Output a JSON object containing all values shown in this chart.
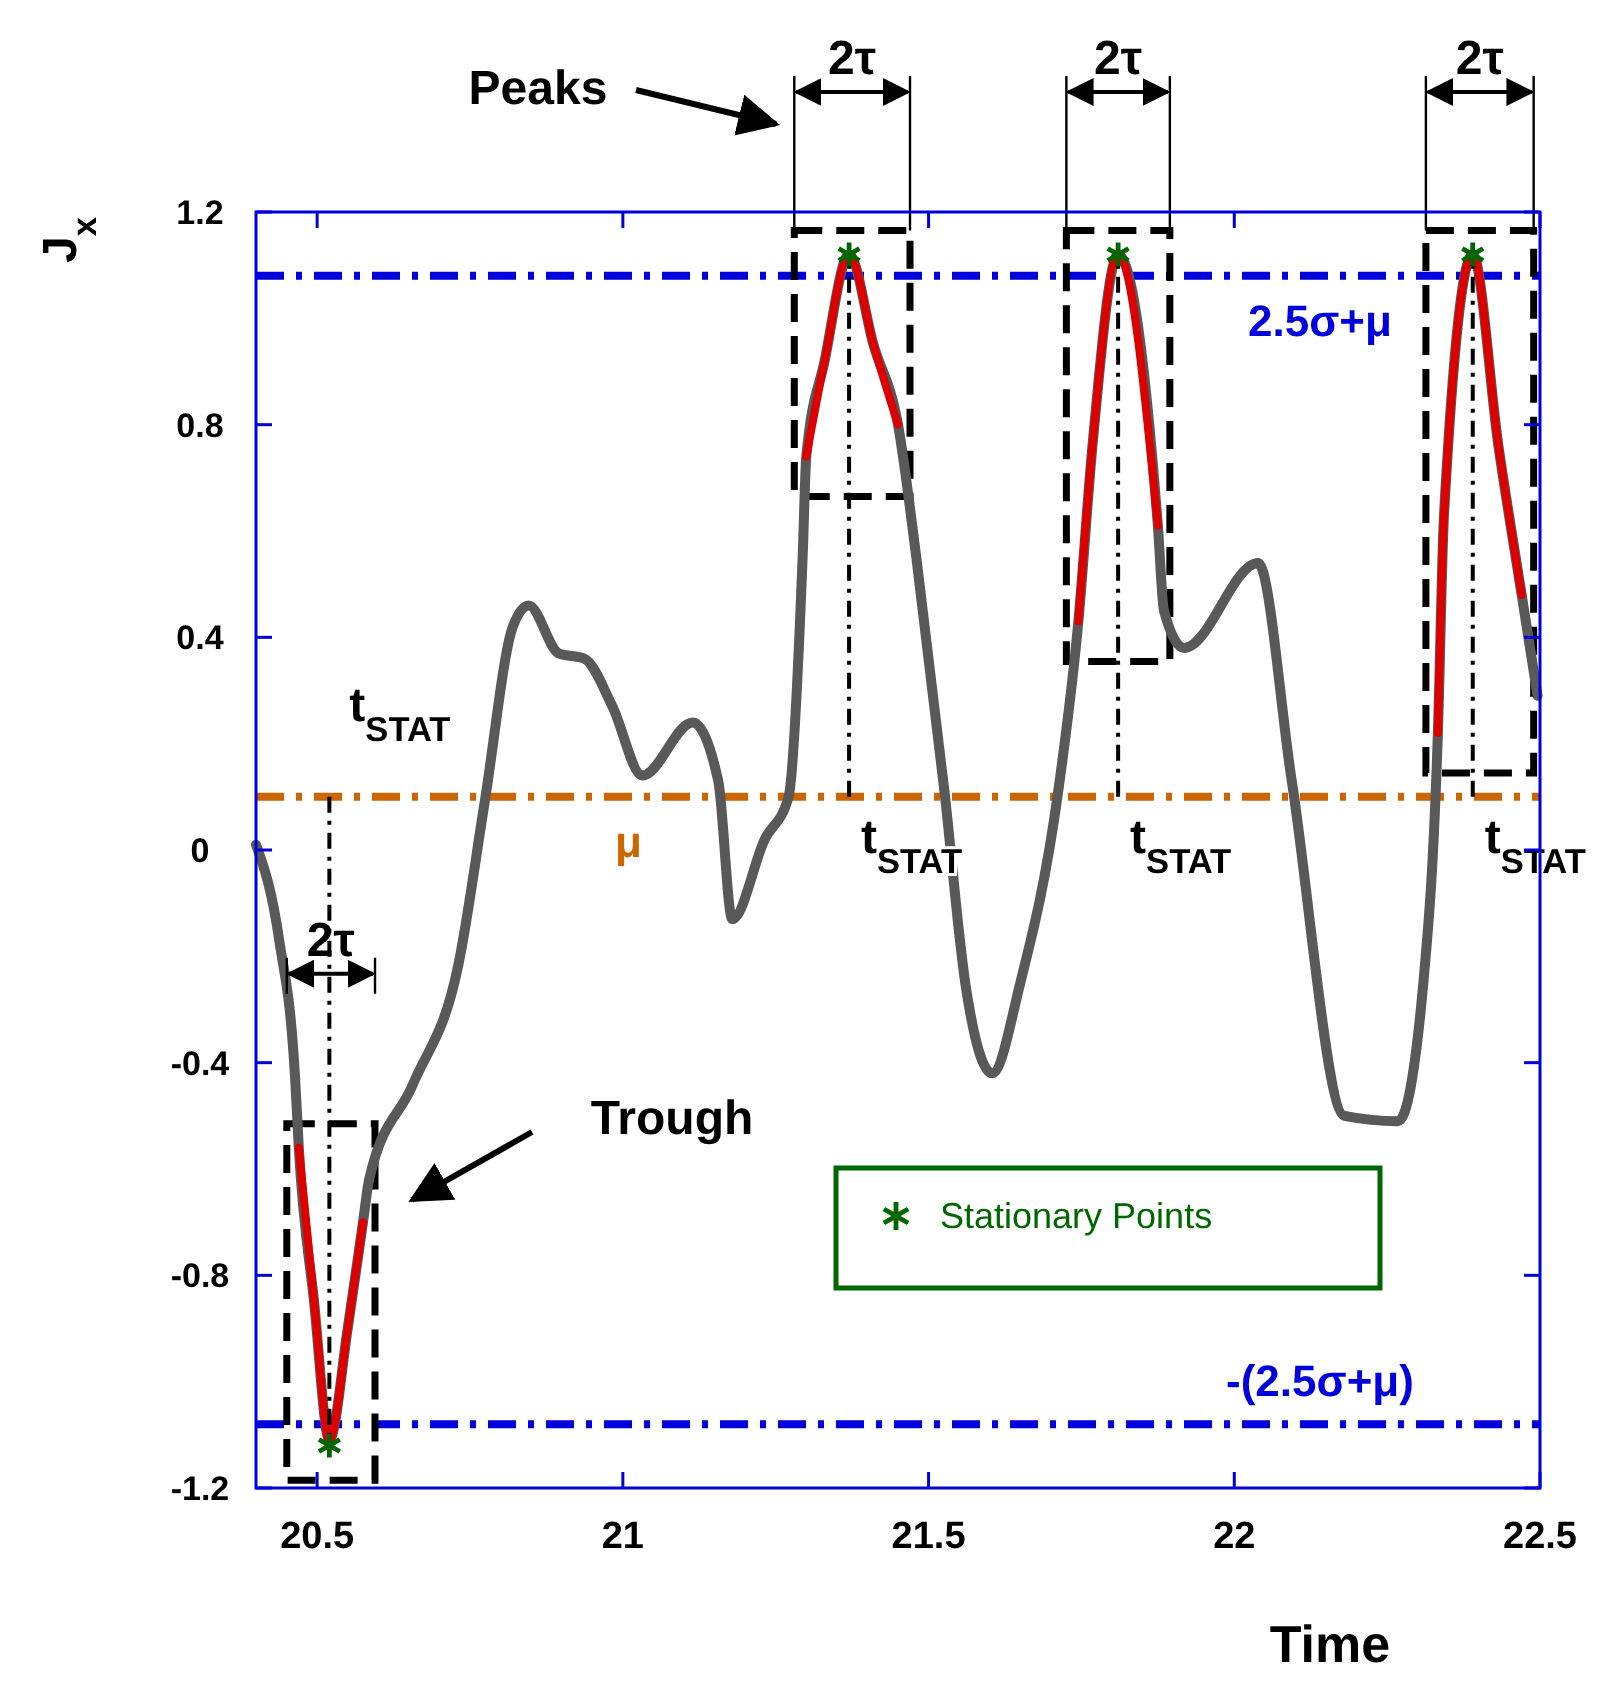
{
  "chart_data": {
    "type": "line",
    "xlabel": "Time",
    "ylabel": "J$_{x}$",
    "xlim": [
      20.4,
      22.5
    ],
    "xticks": [
      20.5,
      21,
      21.5,
      22,
      22.5
    ],
    "ylim": [
      -1.2,
      1.2
    ],
    "yticks": [
      -1.2,
      -0.8,
      -0.4,
      0,
      0.4,
      0.8,
      1.2
    ],
    "grid": false,
    "legend": "bottom right",
    "line_style": "solid",
    "series": [
      {
        "color": "#595959",
        "x": [
          20.4,
          20.438,
          20.464,
          20.47,
          20.495,
          20.52,
          20.55,
          20.575,
          20.585,
          20.657,
          20.732,
          20.774,
          20.82,
          20.846,
          20.895,
          20.937,
          20.983,
          21.032,
          21.114,
          21.156,
          21.179,
          21.232,
          21.271,
          21.294,
          21.3,
          21.33,
          21.37,
          21.41,
          21.45,
          21.48,
          21.526,
          21.56,
          21.604,
          21.65,
          21.712,
          21.745,
          21.768,
          21.81,
          21.875,
          21.885,
          21.918,
          22.039,
          22.094,
          22.18,
          22.268,
          22.31,
          22.333,
          22.343,
          22.39,
          22.432,
          22.47,
          22.496
        ],
        "values": [
          0.01,
          -0.17,
          -0.43,
          -0.56,
          -0.85,
          -1.11,
          -0.9,
          -0.7,
          -0.62,
          -0.44,
          -0.21,
          0.09,
          0.42,
          0.46,
          0.37,
          0.36,
          0.27,
          0.14,
          0.24,
          0.13,
          -0.13,
          0.02,
          0.1,
          0.55,
          0.74,
          0.92,
          1.12,
          0.95,
          0.8,
          0.55,
          0.11,
          -0.25,
          -0.42,
          -0.25,
          0.11,
          0.43,
          0.76,
          1.12,
          0.61,
          0.45,
          0.38,
          0.54,
          0.13,
          -0.5,
          -0.51,
          -0.24,
          0.22,
          0.63,
          1.12,
          0.76,
          0.48,
          0.29
        ]
      },
      {
        "color": "#dd0000",
        "x": [
          20.47,
          20.495,
          20.52,
          20.55,
          20.575,
          20.9,
          21.3,
          21.33,
          21.37,
          21.41,
          21.45,
          21.6,
          21.745,
          21.768,
          21.81,
          21.875,
          22.1,
          22.333,
          22.343,
          22.39,
          22.432,
          22.47
        ],
        "values": [
          -0.56,
          -0.85,
          -1.11,
          -0.9,
          -0.7,
          null,
          0.74,
          0.92,
          1.12,
          0.95,
          0.8,
          null,
          0.43,
          0.76,
          1.12,
          0.61,
          null,
          0.22,
          0.63,
          1.12,
          0.76,
          0.48
        ]
      },
      {
        "type": "scatter",
        "name": "Stationary Points",
        "color": "#006600",
        "marker": "cross",
        "x": [
          20.52,
          21.37,
          21.81,
          22.39
        ],
        "values": [
          -1.12,
          1.12,
          1.12,
          1.12
        ]
      }
    ],
    "ref_lines": [
      {
        "axis": "y",
        "value": 0.1,
        "label": "μ",
        "color": "#cc6600",
        "line_style": "dashed"
      },
      {
        "axis": "y",
        "value": 1.08,
        "label": "2.5σ+μ",
        "color": "#0000dd",
        "line_style": "dashed"
      },
      {
        "axis": "y",
        "value": -1.08,
        "label": "-(2.5σ+μ)",
        "color": "#0000dd",
        "line_style": "dashed"
      }
    ],
    "annotations": [
      "Peaks",
      "Trough",
      "2τ",
      "2τ",
      "2τ",
      "2τ",
      {
        "text": "t$_{STAT}$",
        "x": 20.52,
        "y": 0.1
      },
      {
        "text": "t$_{STAT}$",
        "x": 21.37,
        "y": 0.1
      },
      {
        "text": "t$_{STAT}$",
        "x": 21.81,
        "y": 0.1
      },
      {
        "text": "t$_{STAT}$",
        "x": 22.39,
        "y": 0.1
      }
    ]
  }
}
